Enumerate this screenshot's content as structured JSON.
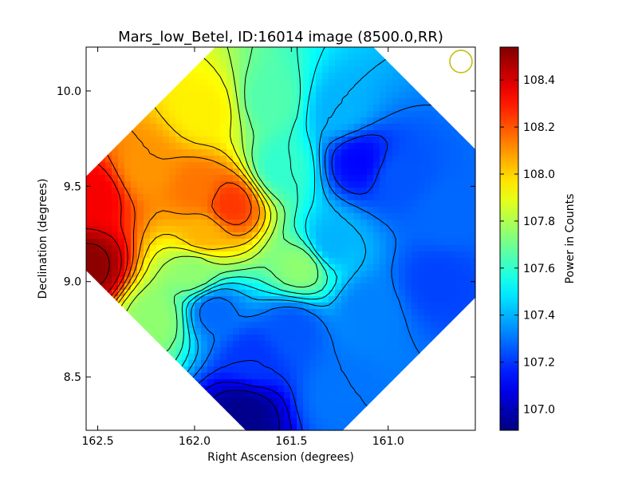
{
  "chart_data": {
    "type": "heatmap",
    "title": "Mars_low_Betel, ID:16014 image (8500.0,RR)",
    "xlabel": "Right Ascension (degrees)",
    "ylabel": "Declination (degrees)",
    "colorbar_label": "Power in Counts",
    "colormap": "jet",
    "xlim": [
      162.56,
      160.55
    ],
    "ylim": [
      8.22,
      10.23
    ],
    "x_ticks": [
      162.5,
      162.0,
      161.5,
      161.0
    ],
    "x_tick_labels": [
      "162.5",
      "162.0",
      "161.5",
      "161.0"
    ],
    "y_ticks": [
      8.5,
      9.0,
      9.5,
      10.0
    ],
    "y_tick_labels": [
      "8.5",
      "9.0",
      "9.5",
      "10.0"
    ],
    "value_range": [
      106.91,
      108.54
    ],
    "colorbar_ticks": [
      107.0,
      107.2,
      107.4,
      107.6,
      107.8,
      108.0,
      108.2,
      108.4
    ],
    "colorbar_tick_labels": [
      "107.0",
      "107.2",
      "107.4",
      "107.6",
      "107.8",
      "108.0",
      "108.2",
      "108.4"
    ],
    "contours": true,
    "footprint": "diamond",
    "beam_marker": {
      "shape": "circle",
      "color": "#bcbc00"
    },
    "colors": {
      "background_outside_map": "#ffffff",
      "contour": "#000000",
      "beam": "#bcbc00"
    },
    "features": [
      {
        "ra": 162.52,
        "dec": 9.45,
        "value": 108.35
      },
      {
        "ra": 162.55,
        "dec": 9.08,
        "value": 108.52
      },
      {
        "ra": 162.25,
        "dec": 9.6,
        "value": 108.1
      },
      {
        "ra": 161.99,
        "dec": 9.48,
        "value": 108.15
      },
      {
        "ra": 161.82,
        "dec": 9.4,
        "value": 108.25
      },
      {
        "ra": 161.95,
        "dec": 9.25,
        "value": 108.05
      },
      {
        "ra": 161.95,
        "dec": 9.9,
        "value": 107.95
      },
      {
        "ra": 162.0,
        "dec": 9.05,
        "value": 107.75
      },
      {
        "ra": 162.2,
        "dec": 8.8,
        "value": 107.75
      },
      {
        "ra": 161.45,
        "dec": 9.08,
        "value": 107.75
      },
      {
        "ra": 161.6,
        "dec": 9.95,
        "value": 107.65
      },
      {
        "ra": 161.55,
        "dec": 9.6,
        "value": 107.6
      },
      {
        "ra": 161.25,
        "dec": 9.9,
        "value": 107.4
      },
      {
        "ra": 161.15,
        "dec": 9.63,
        "value": 107.12
      },
      {
        "ra": 160.95,
        "dec": 9.55,
        "value": 107.25
      },
      {
        "ra": 160.75,
        "dec": 9.0,
        "value": 107.22
      },
      {
        "ra": 160.7,
        "dec": 9.35,
        "value": 107.28
      },
      {
        "ra": 161.1,
        "dec": 8.85,
        "value": 107.32
      },
      {
        "ra": 161.5,
        "dec": 8.75,
        "value": 107.25
      },
      {
        "ra": 161.7,
        "dec": 8.6,
        "value": 107.2
      },
      {
        "ra": 161.75,
        "dec": 8.3,
        "value": 106.93
      },
      {
        "ra": 161.25,
        "dec": 8.4,
        "value": 107.3
      },
      {
        "ra": 161.9,
        "dec": 8.85,
        "value": 107.28
      },
      {
        "ra": 161.3,
        "dec": 9.2,
        "value": 107.4
      }
    ]
  }
}
